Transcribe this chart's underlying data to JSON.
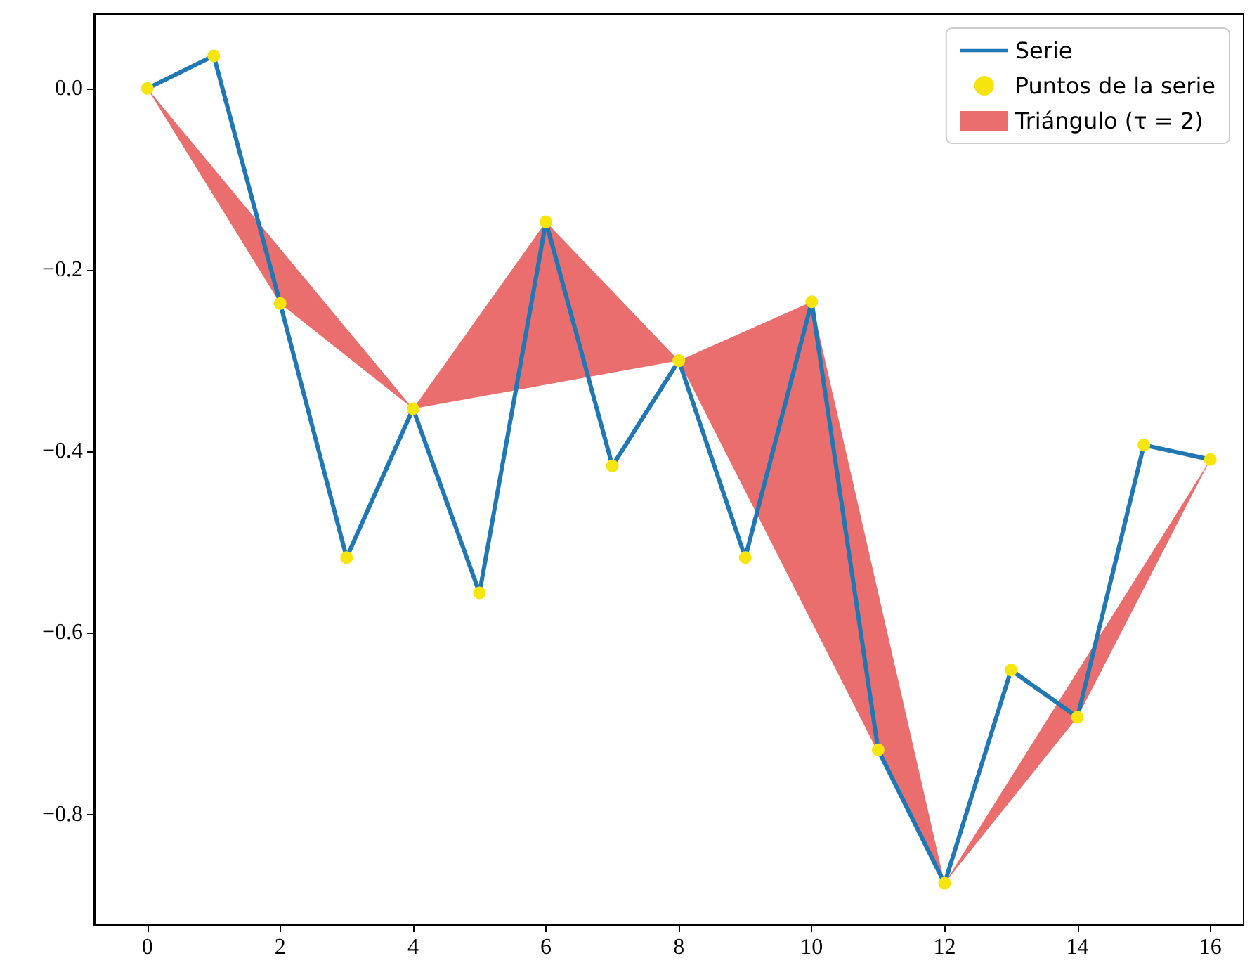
{
  "chart_data": {
    "type": "line",
    "x": [
      0,
      1,
      2,
      3,
      4,
      5,
      6,
      7,
      8,
      9,
      10,
      11,
      12,
      13,
      14,
      15,
      16
    ],
    "series": [
      {
        "name": "Triángulo (τ = 2)",
        "type": "area",
        "color": "#eb6e6e",
        "x": [
          0,
          2,
          4,
          6,
          8,
          10,
          12,
          14,
          16,
          12,
          8,
          4,
          0
        ],
        "values": [
          0,
          -0.237,
          -0.353,
          -0.147,
          -0.3,
          -0.235,
          -0.876,
          -0.693,
          -0.409,
          -0.876,
          -0.3,
          -0.353,
          0
        ]
      },
      {
        "name": "Serie",
        "color": "#1f77b4",
        "marker": "none",
        "values": [
          0,
          0.036,
          -0.237,
          -0.517,
          -0.353,
          -0.556,
          -0.147,
          -0.416,
          -0.3,
          -0.517,
          -0.235,
          -0.729,
          -0.876,
          -0.641,
          -0.693,
          -0.393,
          -0.409
        ]
      },
      {
        "name": "Puntos de la serie",
        "type": "scatter",
        "color": "#f5e50c",
        "marker": "circle",
        "values": [
          0,
          0.036,
          -0.237,
          -0.517,
          -0.353,
          -0.556,
          -0.147,
          -0.416,
          -0.3,
          -0.517,
          -0.235,
          -0.729,
          -0.876,
          -0.641,
          -0.693,
          -0.393,
          -0.409
        ]
      }
    ],
    "xlim": [
      -0.8,
      16.5
    ],
    "xticks": [
      0,
      2,
      4,
      6,
      8,
      10,
      12,
      14,
      16
    ],
    "ylim": [
      -0.922,
      0.082
    ],
    "yticks": [
      {
        "value": -0.8,
        "label": "−0.8"
      },
      {
        "value": -0.6,
        "label": "−0.6"
      },
      {
        "value": -0.4,
        "label": "−0.4"
      },
      {
        "value": -0.2,
        "label": "−0.2"
      },
      {
        "value": 0,
        "label": "0.0"
      }
    ],
    "grid": false,
    "legend": "top right"
  }
}
